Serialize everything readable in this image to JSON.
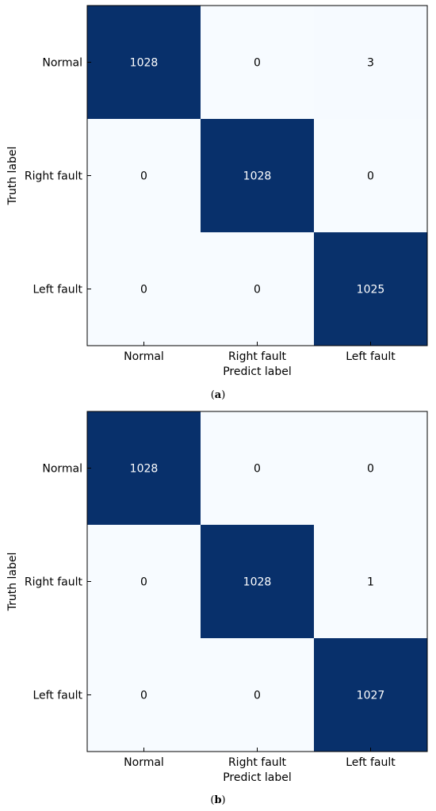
{
  "colors": {
    "high": "#08306b",
    "low": "#f7fbff",
    "text_on_dark": "#ffffff",
    "text_on_light": "#000000"
  },
  "chart_data": [
    {
      "type": "heatmap",
      "panel_label": "a",
      "xlabel": "Predict label",
      "ylabel": "Truth label",
      "x_categories": [
        "Normal",
        "Right fault",
        "Left fault"
      ],
      "y_categories": [
        "Normal",
        "Right fault",
        "Left fault"
      ],
      "matrix": [
        [
          1028,
          0,
          3
        ],
        [
          0,
          1028,
          0
        ],
        [
          0,
          0,
          1025
        ]
      ]
    },
    {
      "type": "heatmap",
      "panel_label": "b",
      "xlabel": "Predict label",
      "ylabel": "Truth label",
      "x_categories": [
        "Normal",
        "Right fault",
        "Left fault"
      ],
      "y_categories": [
        "Normal",
        "Right fault",
        "Left fault"
      ],
      "matrix": [
        [
          1028,
          0,
          0
        ],
        [
          0,
          1028,
          1
        ],
        [
          0,
          0,
          1027
        ]
      ]
    }
  ]
}
